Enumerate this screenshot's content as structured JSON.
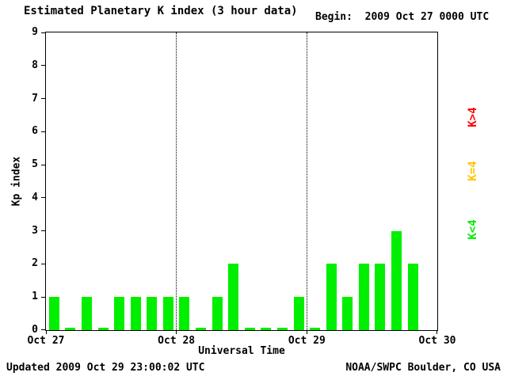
{
  "header": {
    "title": "Estimated Planetary K index (3 hour data)",
    "begin_label": "Begin:  2009 Oct 27 0000 UTC"
  },
  "footer": {
    "updated": "Updated 2009 Oct 29 23:00:02 UTC",
    "source": "NOAA/SWPC Boulder, CO USA"
  },
  "chart_data": {
    "type": "bar",
    "title": "Estimated Planetary K index (3 hour data)",
    "xlabel": "Universal Time",
    "ylabel": "Kp index",
    "ylim": [
      0,
      9
    ],
    "x_ticks": [
      "Oct 27",
      "Oct 28",
      "Oct 29",
      "Oct 30"
    ],
    "bars_per_day": 8,
    "values": [
      1,
      0,
      1,
      0,
      1,
      1,
      1,
      1,
      1,
      0,
      1,
      2,
      0,
      0,
      0,
      1,
      0,
      2,
      1,
      2,
      2,
      3,
      2
    ],
    "colors": {
      "below": "#00ee00",
      "equal": "#ffc400",
      "above": "#ff0000",
      "axis": "#000000",
      "background": "#ffffff"
    },
    "color_rule": "green K<4, yellow K=4, red K>4",
    "grid": "dotted vertical lines at day boundaries",
    "legend_position": "right, rotated 90deg",
    "legend": [
      {
        "label": "K>4",
        "color": "#ff0000"
      },
      {
        "label": "K=4",
        "color": "#ffc400"
      },
      {
        "label": "K<4",
        "color": "#00ee00"
      }
    ]
  }
}
